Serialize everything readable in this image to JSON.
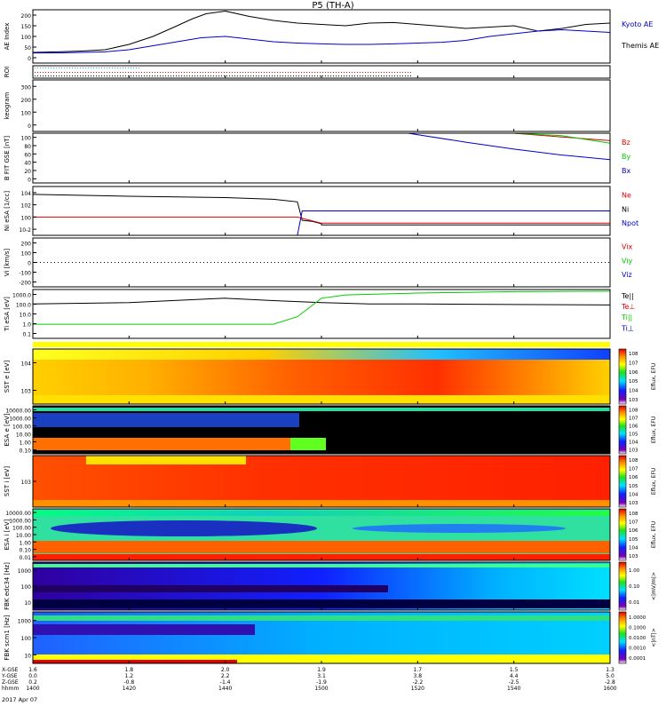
{
  "title": "P5 (TH-A)",
  "date_label": "2017 Apr 07",
  "x_axis": {
    "ticks": [
      "1400",
      "1420",
      "1440",
      "1500",
      "1520",
      "1540",
      "1600"
    ],
    "rows": [
      {
        "label": "X-GSE",
        "values": [
          "1.6",
          "1.8",
          "2.0",
          "1.9",
          "1.7",
          "1.5",
          "1.3"
        ]
      },
      {
        "label": "Y-GSE",
        "values": [
          "0.0",
          "1.2",
          "2.2",
          "3.1",
          "3.8",
          "4.4",
          "5.0"
        ]
      },
      {
        "label": "Z-GSE",
        "values": [
          "0.2",
          "-0.8",
          "-1.4",
          "-1.9",
          "-2.2",
          "-2.5",
          "-2.8"
        ]
      },
      {
        "label": "hhmm",
        "values": [
          "1400",
          "1420",
          "1440",
          "1500",
          "1520",
          "1540",
          "1600"
        ]
      }
    ]
  },
  "colors": {
    "red": "#dd0000",
    "green": "#00cc00",
    "blue": "#0000cc",
    "black": "#000000",
    "frame": "#000000"
  },
  "chart_data": [
    {
      "type": "line",
      "id": "ae",
      "ylabel": "AE Index",
      "ylim": [
        0,
        200
      ],
      "yticks": [
        "0",
        "50",
        "100",
        "150",
        "200"
      ],
      "legend": [
        "Kyoto AE",
        "Themis AE"
      ],
      "series": [
        {
          "name": "Kyoto AE",
          "color": "#000000",
          "x": [
            1400,
            1405,
            1410,
            1415,
            1420,
            1425,
            1430,
            1433,
            1436,
            1440,
            1445,
            1450,
            1455,
            1500,
            1505,
            1510,
            1515,
            1520,
            1525,
            1530,
            1535,
            1540,
            1545,
            1550,
            1555,
            1600
          ],
          "y": [
            40,
            42,
            45,
            50,
            70,
            100,
            140,
            165,
            185,
            195,
            175,
            160,
            150,
            145,
            140,
            150,
            152,
            145,
            138,
            130,
            135,
            140,
            120,
            130,
            145,
            150
          ]
        },
        {
          "name": "Themis AE",
          "color": "#0000cc",
          "x": [
            1400,
            1405,
            1410,
            1415,
            1420,
            1425,
            1430,
            1435,
            1440,
            1445,
            1450,
            1455,
            1500,
            1505,
            1510,
            1515,
            1520,
            1525,
            1530,
            1535,
            1540,
            1545,
            1550,
            1555,
            1600
          ],
          "y": [
            38,
            38,
            40,
            42,
            50,
            65,
            80,
            95,
            100,
            90,
            80,
            75,
            72,
            70,
            70,
            72,
            75,
            78,
            85,
            100,
            110,
            120,
            125,
            120,
            115
          ]
        }
      ]
    },
    {
      "type": "scatter",
      "id": "roi",
      "ylabel": "ROI"
    },
    {
      "type": "line",
      "id": "keogram",
      "ylabel": "keogram",
      "ylim": [
        0,
        300
      ],
      "yticks": [
        "0",
        "100",
        "200",
        "300"
      ]
    },
    {
      "type": "line",
      "id": "bfit",
      "ylabel": "B FIT GSE [nT]",
      "ylim": [
        0,
        100
      ],
      "yticks": [
        "0",
        "20",
        "40",
        "60",
        "80",
        "100"
      ],
      "legend": [
        "Bz",
        "By",
        "Bx"
      ],
      "series": [
        {
          "name": "Bz",
          "color": "#dd0000",
          "x": [
            1540,
            1600
          ],
          "y": [
            100,
            85
          ]
        },
        {
          "name": "By",
          "color": "#00cc00",
          "x": [
            1540,
            1550,
            1600
          ],
          "y": [
            100,
            95,
            80
          ]
        },
        {
          "name": "Bx",
          "color": "#0000cc",
          "x": [
            1518,
            1530,
            1540,
            1550,
            1600
          ],
          "y": [
            100,
            82,
            68,
            56,
            47
          ]
        }
      ]
    },
    {
      "type": "line",
      "id": "ni",
      "ylabel": "Ni eSA [1/cc]",
      "ylim_log": [
        -3,
        5
      ],
      "yticks": [
        "10^-2",
        "10^0",
        "10^2",
        "10^4"
      ],
      "legend": [
        "Ne",
        "Ni",
        "Npot"
      ],
      "series": [
        {
          "name": "Ni",
          "color": "#000000",
          "x": [
            1400,
            1420,
            1440,
            1450,
            1455,
            1456,
            1458,
            1460,
            1500,
            1520,
            1540,
            1600
          ],
          "y": [
            5000,
            2500,
            1500,
            800,
            300,
            0.3,
            0.2,
            0.08,
            0.05,
            0.05,
            0.05,
            0.05
          ]
        },
        {
          "name": "Ne",
          "color": "#dd0000",
          "x": [
            1400,
            1420,
            1440,
            1455,
            1500,
            1520,
            1600
          ],
          "y": [
            1,
            1,
            1,
            1,
            0.1,
            0.1,
            0.1
          ]
        },
        {
          "name": "Npot",
          "color": "#0000cc",
          "x": [
            1455,
            1456,
            1458,
            1500,
            1540,
            1600
          ],
          "y": [
            0.001,
            10,
            10,
            10,
            10,
            10
          ]
        }
      ]
    },
    {
      "type": "line",
      "id": "vi",
      "ylabel": "Vi [km/s]",
      "ylim": [
        -300,
        300
      ],
      "yticks": [
        "-200",
        "-100",
        "0",
        "100",
        "200"
      ],
      "legend": [
        "Vix",
        "Viy",
        "Viz"
      ]
    },
    {
      "type": "line",
      "id": "ti",
      "ylabel": "Ti eSA [eV]",
      "ylim_log": [
        -1,
        3.5
      ],
      "yticks": [
        "0.1",
        "1.0",
        "10.0",
        "100.0",
        "1000.0"
      ],
      "legend": [
        "Te||",
        "Te⊥",
        "Ti||",
        "Ti⊥"
      ],
      "series": [
        {
          "name": "Te||",
          "color": "#000000",
          "x": [
            1400,
            1420,
            1440,
            1450,
            1500,
            1510,
            1520,
            1540,
            1600
          ],
          "y": [
            150,
            200,
            500,
            300,
            200,
            150,
            150,
            130,
            120
          ]
        },
        {
          "name": "Ti||",
          "color": "#00cc00",
          "x": [
            1400,
            1450,
            1455,
            1500,
            1505,
            1520,
            1540,
            1600
          ],
          "y": [
            2,
            2,
            10,
            500,
            1000,
            1500,
            2000,
            2200
          ]
        }
      ]
    },
    {
      "type": "heatmap",
      "id": "sst_e",
      "ylabel": "SST e [eV]",
      "yticks": [
        "10^3",
        "10^4"
      ]
    },
    {
      "type": "heatmap",
      "id": "esa_e",
      "ylabel": "ESA e [eV]",
      "yticks": [
        "0.10",
        "1.00",
        "10.00",
        "100.00",
        "1000.00",
        "10000.00"
      ]
    },
    {
      "type": "heatmap",
      "id": "sst_i",
      "ylabel": "SST i [eV]",
      "yticks": [
        "10^3"
      ]
    },
    {
      "type": "heatmap",
      "id": "esa_i",
      "ylabel": "ESA i [eV]",
      "yticks": [
        "0.01",
        "0.10",
        "1.00",
        "10.00",
        "100.00",
        "1000.00",
        "10000.00"
      ]
    },
    {
      "type": "heatmap",
      "id": "fbk_e",
      "ylabel": "FBK edc34 [Hz]",
      "yticks": [
        "10",
        "100",
        "1000"
      ]
    },
    {
      "type": "heatmap",
      "id": "fbk_b",
      "ylabel": "FBK scm1 [Hz]",
      "yticks": [
        "10",
        "100",
        "1000"
      ]
    }
  ],
  "colorbars": [
    {
      "label": "Eflux, EFU",
      "ticks": [
        "10^3",
        "10^4",
        "10^5",
        "10^6",
        "10^7",
        "10^8"
      ]
    },
    {
      "label": "Eflux, EFU",
      "ticks": [
        "10^3",
        "10^4",
        "10^5",
        "10^6",
        "10^7",
        "10^8"
      ]
    },
    {
      "label": "Eflux, EFU",
      "ticks": [
        "10^3",
        "10^4",
        "10^5",
        "10^6",
        "10^7",
        "10^8"
      ]
    },
    {
      "label": "Eflux, EFU",
      "ticks": [
        "10^3",
        "10^4",
        "10^5",
        "10^6",
        "10^7",
        "10^8"
      ]
    },
    {
      "label": "<|mV/m|>",
      "ticks": [
        "0.01",
        "0.10",
        "1.00"
      ]
    },
    {
      "label": "<|nT|>",
      "ticks": [
        "0.0001",
        "0.0010",
        "0.0100",
        "0.1000",
        "1.0000"
      ]
    }
  ]
}
